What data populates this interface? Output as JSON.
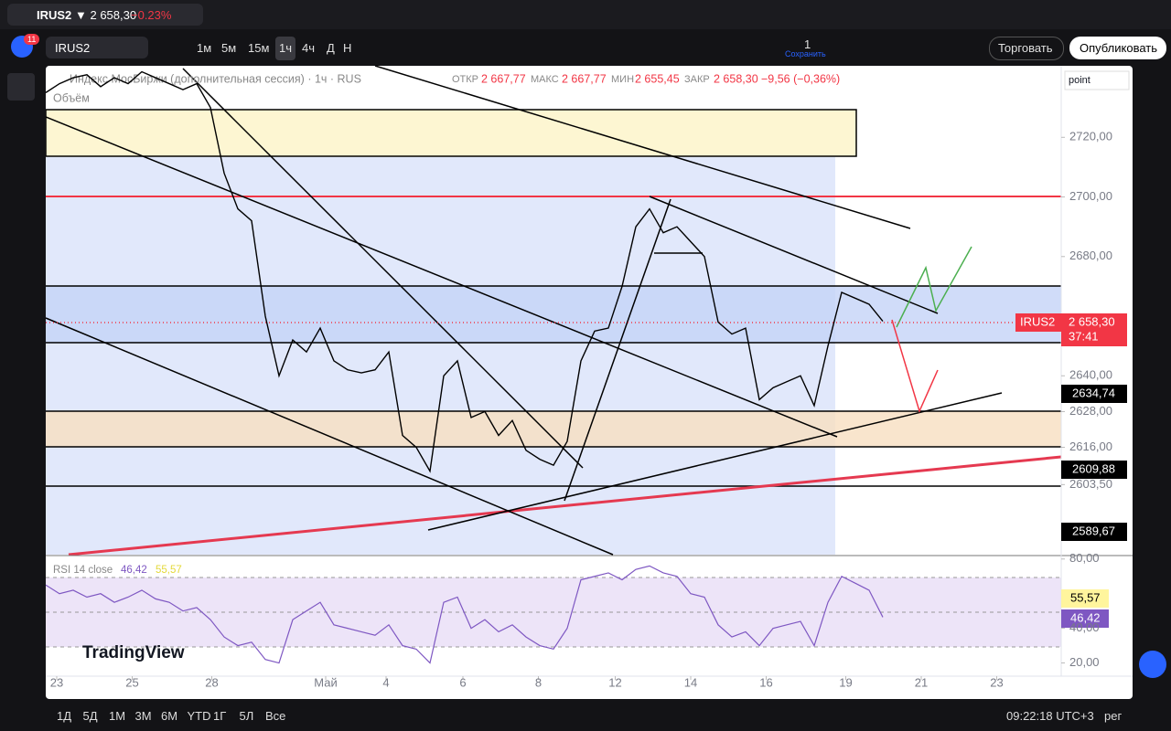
{
  "tab": {
    "symbol": "IRUS2",
    "price": "▼ 2 658,30",
    "change": "−0.23%"
  },
  "toolbar": {
    "badge": "11",
    "symbol": "IRUS2",
    "intervals": [
      "1м",
      "5м",
      "15м",
      "1ч",
      "4ч",
      "Д",
      "Н"
    ],
    "layout_count": "1",
    "save": "Сохранить",
    "trade": "Торговать",
    "publish": "Опубликовать"
  },
  "legend": {
    "title": "Индекс МосБиржи (дополнительная сессия) · 1ч · RUS",
    "open_label": "ОТКР",
    "open": "2 667,77",
    "high_label": "МАКС",
    "high": "2 667,77",
    "low_label": "МИН",
    "low": "2 655,45",
    "close_label": "ЗАКР",
    "close": "2 658,30",
    "change": "−9,56 (−0,36%)",
    "volume": "Объём"
  },
  "scale_mode": "point",
  "price_labels": [
    {
      "text": "IRUS2"
    },
    {
      "text": "2 658,30"
    },
    {
      "text": "37:41"
    },
    {
      "text": "2634,74"
    },
    {
      "text": "2609,88"
    },
    {
      "text": "2589,67"
    }
  ],
  "rsi_legend": {
    "title": "RSI 14 close",
    "value": "46,42",
    "ma": "55,57"
  },
  "rsi_labels": [
    "55,57",
    "46,42"
  ],
  "logo": "TradingView",
  "ranges": [
    "1Д",
    "5Д",
    "1М",
    "3М",
    "6М",
    "YTD",
    "1Г",
    "5Л",
    "Все"
  ],
  "clock": "09:22:18 UTC+3",
  "session": "рег",
  "chart_data": [
    {
      "type": "line",
      "color": "#000000",
      "values": [
        2735,
        2738,
        2740,
        2741,
        2737,
        2740,
        2738,
        2742,
        2740,
        2738,
        2736,
        2738,
        2730,
        2708,
        2696,
        2692,
        2660,
        2640,
        2652,
        2648,
        2656,
        2645,
        2642,
        2641,
        2642,
        2648,
        2620,
        2616,
        2608,
        2640,
        2645,
        2626,
        2628,
        2620,
        2625,
        2615,
        2612,
        2610,
        2618,
        2645,
        2655,
        2656,
        2670,
        2690,
        2696,
        2688,
        2690,
        2685,
        2680,
        2658,
        2654,
        2656,
        2632,
        2636,
        2638,
        2640,
        2630,
        2650,
        2668,
        2666,
        2664,
        2658.3
      ],
      "xlim": [
        0,
        74
      ],
      "xticks": [
        {
          "value": 0.8,
          "label": "23"
        },
        {
          "value": 6.3,
          "label": "25"
        },
        {
          "value": 12.1,
          "label": "28"
        },
        {
          "value": 20.4,
          "label": "Май"
        },
        {
          "value": 24.8,
          "label": "4"
        },
        {
          "value": 30.4,
          "label": "6"
        },
        {
          "value": 35.9,
          "label": "8"
        },
        {
          "value": 41.5,
          "label": "12"
        },
        {
          "value": 47,
          "label": "14"
        },
        {
          "value": 52.5,
          "label": "16"
        },
        {
          "value": 58.3,
          "label": "19"
        },
        {
          "value": 63.8,
          "label": "21"
        },
        {
          "value": 69.3,
          "label": "23"
        }
      ],
      "ylim": [
        2580,
        2744
      ],
      "yticks": [
        {
          "value": 2720,
          "label": "2720,00"
        },
        {
          "value": 2700,
          "label": "2700,00"
        },
        {
          "value": 2680,
          "label": "2680,00"
        },
        {
          "value": 2640,
          "label": "2640,00"
        },
        {
          "value": 2628,
          "label": "2628,00"
        },
        {
          "value": 2616,
          "label": "2616,00"
        },
        {
          "value": 2603.5,
          "label": "2603,50"
        }
      ]
    },
    {
      "type": "line",
      "color": "#7e57c2",
      "values": [
        65,
        60,
        62,
        58,
        60,
        55,
        58,
        62,
        57,
        55,
        50,
        52,
        45,
        35,
        30,
        32,
        22,
        20,
        45,
        50,
        55,
        42,
        40,
        38,
        36,
        42,
        30,
        28,
        20,
        55,
        58,
        40,
        45,
        38,
        42,
        35,
        30,
        28,
        40,
        68,
        70,
        72,
        68,
        74,
        76,
        72,
        70,
        60,
        58,
        42,
        35,
        38,
        30,
        40,
        42,
        44,
        30,
        55,
        70,
        66,
        62,
        46.42
      ],
      "xlim": [
        0,
        74
      ],
      "ylim": [
        15,
        82
      ],
      "yticks": [
        {
          "value": 80,
          "label": "80,00"
        },
        {
          "value": 40,
          "label": "40,00"
        },
        {
          "value": 20,
          "label": "20,00"
        }
      ]
    }
  ]
}
